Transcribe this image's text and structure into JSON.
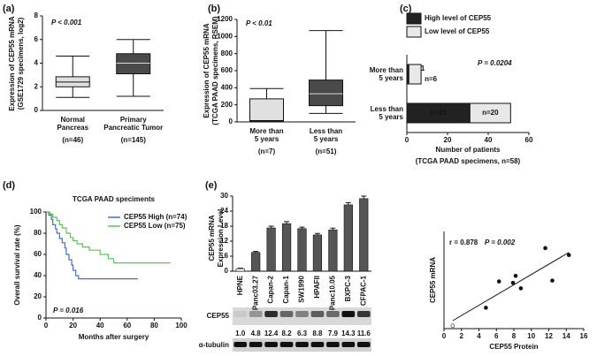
{
  "chart_data": [
    {
      "type": "box",
      "panel_label": "(a)",
      "annotation": "P < 0.001",
      "ylabel": [
        "Expression of CEP55 mRNA",
        "(GSE1729 specimens, log2)"
      ],
      "categories": [
        [
          "Normal",
          "Pancreas"
        ],
        [
          "Primary",
          "Pancreatic Tumor"
        ]
      ],
      "n_labels": [
        "(n=46)",
        "(n=145)"
      ],
      "boxes": [
        {
          "min": 1.1,
          "q1": 2.0,
          "median": 2.4,
          "q3": 2.85,
          "max": 4.6
        },
        {
          "min": 1.2,
          "q1": 3.1,
          "median": 4.0,
          "q3": 4.8,
          "max": 6.0
        }
      ],
      "colors": [
        "#e0e0e0",
        "#4a4a4a"
      ],
      "ylim": [
        0,
        8
      ],
      "yticks": [
        0,
        2,
        4,
        6,
        8
      ]
    },
    {
      "type": "box",
      "panel_label": "(b)",
      "annotation": "P < 0.01",
      "ylabel": [
        "Expression of CEP55 mRNA",
        "(TCGA PAAD specimens, RSEM)"
      ],
      "categories": [
        [
          "More than",
          "5 years"
        ],
        [
          "Less than",
          "5 years"
        ]
      ],
      "n_labels": [
        "(n=7)",
        "(n=51)"
      ],
      "boxes": [
        {
          "min": 0,
          "q1": 5,
          "median": 15,
          "q3": 270,
          "max": 390
        },
        {
          "min": 100,
          "q1": 190,
          "median": 330,
          "q3": 490,
          "max": 1070
        }
      ],
      "colors": [
        "#e0e0e0",
        "#4a4a4a"
      ],
      "ylim": [
        0,
        1200
      ],
      "yticks": [
        0,
        200,
        400,
        600,
        800,
        1000,
        1200
      ]
    },
    {
      "type": "stacked_barh",
      "panel_label": "(c)",
      "annotation": "P = 0.0204",
      "categories": [
        [
          "More than",
          "5 years"
        ],
        [
          "Less than",
          "5 years"
        ]
      ],
      "series": [
        {
          "name": "High level of CEP55",
          "color": "#222222",
          "values": [
            1,
            31
          ],
          "value_labels": [
            "n=1",
            "n=31"
          ]
        },
        {
          "name": "Low level of CEP55",
          "color": "#e8e8e8",
          "values": [
            6,
            20
          ],
          "value_labels": [
            "n=6",
            "n=20"
          ]
        }
      ],
      "xlim": [
        0,
        60
      ],
      "xticks": [
        0,
        20,
        40,
        60
      ],
      "xlabel": "Number of patients",
      "subtitle": "(TCGA PAAD specimens, n=58)"
    },
    {
      "type": "survival",
      "panel_label": "(d)",
      "title": "TCGA PAAD speciments",
      "annotation": "P = 0.016",
      "xlabel": "Months after surgery",
      "ylabel": "Overall survival rate (%)",
      "series": [
        {
          "name": "CEP55 High (n=74)",
          "color": "#4a6fb5",
          "x": [
            0,
            2,
            4,
            5,
            7,
            8,
            10,
            12,
            14,
            15,
            17,
            19,
            20,
            22,
            24,
            68
          ],
          "values": [
            100,
            97,
            93,
            88,
            84,
            80,
            75,
            71,
            66,
            60,
            55,
            50,
            45,
            40,
            37,
            37
          ]
        },
        {
          "name": "CEP55 Low (n=75)",
          "color": "#5cc25c",
          "x": [
            0,
            3,
            5,
            8,
            10,
            12,
            15,
            18,
            20,
            23,
            27,
            32,
            40,
            46,
            50,
            60,
            92
          ],
          "values": [
            100,
            98,
            95,
            92,
            88,
            85,
            80,
            76,
            73,
            70,
            67,
            64,
            60,
            56,
            52,
            52,
            52
          ]
        }
      ],
      "xlim": [
        0,
        100
      ],
      "xticks": [
        0,
        20,
        40,
        60,
        80,
        100
      ],
      "ylim": [
        0,
        100
      ],
      "yticks": [
        0,
        20,
        40,
        60,
        80,
        100
      ]
    },
    {
      "type": "bar_blot",
      "panel_label": "(e)",
      "ylabel": [
        "CEP55 mRNA",
        "Expression Level"
      ],
      "categories": [
        "HPNE",
        "Panc03.27",
        "Capan-2",
        "Capan-1",
        "SW1990",
        "HPAFII",
        "Panc10.05",
        "BXPC-3",
        "CFPAC-1"
      ],
      "values": [
        1,
        7.5,
        17.3,
        19,
        17,
        14.5,
        16.5,
        26.5,
        29
      ],
      "errors": [
        0.2,
        0.4,
        0.7,
        0.8,
        0.6,
        0.6,
        0.7,
        0.9,
        1.0
      ],
      "colors": [
        "#ffffff",
        "#555555"
      ],
      "ylim": [
        0,
        30
      ],
      "yticks": [
        0,
        6,
        12,
        18,
        24,
        30
      ],
      "blot_labels": [
        "CEP55",
        "α-tubulin"
      ],
      "protein": {
        "values": [
          1.0,
          4.8,
          12.4,
          8.2,
          6.3,
          8.8,
          7.9,
          14.3,
          11.6
        ],
        "value_labels": [
          "1.0",
          "4.8",
          "12.4",
          "8.2",
          "6.3",
          "8.8",
          "7.9",
          "14.3",
          "11.6"
        ]
      }
    },
    {
      "type": "scatter",
      "annotation": [
        "r = 0.878",
        "P = 0.002"
      ],
      "x": [
        1.0,
        4.8,
        12.4,
        8.2,
        6.3,
        8.8,
        7.9,
        14.3,
        11.6
      ],
      "values": [
        1,
        7.5,
        17.3,
        19,
        17,
        14.5,
        16.5,
        26.5,
        29
      ],
      "open_points": [
        0
      ],
      "color": "#111111",
      "xlim": [
        0,
        16
      ],
      "xticks": [
        0,
        2,
        4,
        6,
        8,
        10,
        12,
        14,
        16
      ],
      "ylim": [
        0,
        35
      ],
      "xlabel": "CEP55 Protein",
      "ylabel": "CEP55 mRNA"
    }
  ]
}
